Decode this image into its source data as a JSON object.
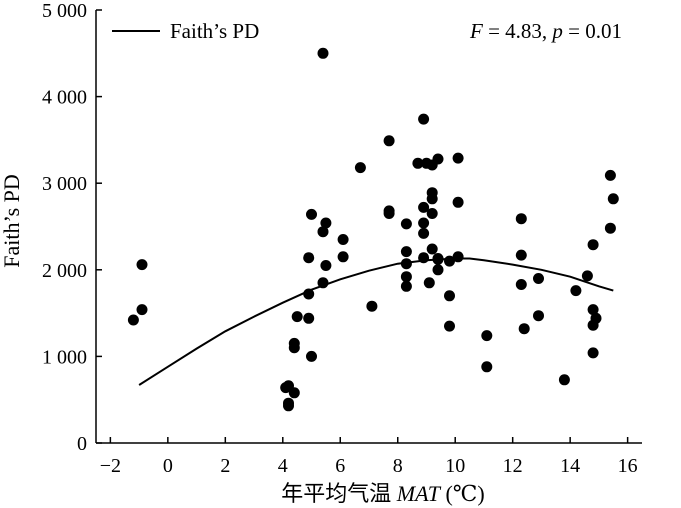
{
  "chart_data": {
    "type": "scatter",
    "xlabel": {
      "prefix": "年平均气温 ",
      "italic": "MAT",
      "suffix": " (℃)"
    },
    "ylabel": "Faith’s PD",
    "xlim": [
      -2.5,
      16.5
    ],
    "ylim": [
      0,
      5000
    ],
    "xticks": [
      -2,
      0,
      2,
      4,
      6,
      8,
      10,
      12,
      14,
      16
    ],
    "xtick_labels": [
      "−2",
      "0",
      "2",
      "4",
      "6",
      "8",
      "10",
      "12",
      "14",
      "16"
    ],
    "yticks": [
      0,
      1000,
      2000,
      3000,
      4000,
      5000
    ],
    "ytick_labels": [
      "0",
      "1 000",
      "2 000",
      "3 000",
      "4 000",
      "5 000"
    ],
    "grid": false,
    "legend": {
      "position": "top-left",
      "entries": [
        {
          "label": "Faith’s PD",
          "marker": "line"
        }
      ]
    },
    "annotation": {
      "F_label": "F",
      "F_value": " = 4.83, ",
      "p_label": "p",
      "p_value": " = 0.01"
    },
    "colors": {
      "points": "#000000",
      "fit_line": "#000000"
    },
    "fit_curve": {
      "kind": "quadratic",
      "x": [
        -1.0,
        0,
        1,
        2,
        3,
        4,
        5,
        6,
        7,
        8,
        9,
        10,
        10.5,
        11,
        12,
        13,
        14,
        15,
        15.5
      ],
      "y": [
        670,
        880,
        1090,
        1290,
        1460,
        1620,
        1770,
        1890,
        1990,
        2070,
        2110,
        2130,
        2130,
        2110,
        2060,
        2000,
        1920,
        1810,
        1760
      ]
    },
    "points": [
      {
        "x": -1.2,
        "y": 1420
      },
      {
        "x": -0.9,
        "y": 1540
      },
      {
        "x": -0.9,
        "y": 2060
      },
      {
        "x": 4.1,
        "y": 640
      },
      {
        "x": 4.2,
        "y": 660
      },
      {
        "x": 4.2,
        "y": 430
      },
      {
        "x": 4.2,
        "y": 460
      },
      {
        "x": 4.4,
        "y": 580
      },
      {
        "x": 4.4,
        "y": 1100
      },
      {
        "x": 4.4,
        "y": 1150
      },
      {
        "x": 4.5,
        "y": 1460
      },
      {
        "x": 4.9,
        "y": 1720
      },
      {
        "x": 4.9,
        "y": 1440
      },
      {
        "x": 4.9,
        "y": 2140
      },
      {
        "x": 5.0,
        "y": 1000
      },
      {
        "x": 5.0,
        "y": 2640
      },
      {
        "x": 5.4,
        "y": 2440
      },
      {
        "x": 5.4,
        "y": 1850
      },
      {
        "x": 5.5,
        "y": 2540
      },
      {
        "x": 5.5,
        "y": 2050
      },
      {
        "x": 5.4,
        "y": 4500
      },
      {
        "x": 6.1,
        "y": 2350
      },
      {
        "x": 6.1,
        "y": 2150
      },
      {
        "x": 6.7,
        "y": 3180
      },
      {
        "x": 7.1,
        "y": 1580
      },
      {
        "x": 7.7,
        "y": 3490
      },
      {
        "x": 7.7,
        "y": 2680
      },
      {
        "x": 7.7,
        "y": 2650
      },
      {
        "x": 8.3,
        "y": 2530
      },
      {
        "x": 8.3,
        "y": 2210
      },
      {
        "x": 8.3,
        "y": 2070
      },
      {
        "x": 8.3,
        "y": 1920
      },
      {
        "x": 8.3,
        "y": 1810
      },
      {
        "x": 8.7,
        "y": 3230
      },
      {
        "x": 8.9,
        "y": 3740
      },
      {
        "x": 8.9,
        "y": 2720
      },
      {
        "x": 8.9,
        "y": 2540
      },
      {
        "x": 8.9,
        "y": 2420
      },
      {
        "x": 8.9,
        "y": 2140
      },
      {
        "x": 9.0,
        "y": 3230
      },
      {
        "x": 9.1,
        "y": 1850
      },
      {
        "x": 9.2,
        "y": 3210
      },
      {
        "x": 9.2,
        "y": 2890
      },
      {
        "x": 9.2,
        "y": 2820
      },
      {
        "x": 9.2,
        "y": 2650
      },
      {
        "x": 9.2,
        "y": 2240
      },
      {
        "x": 9.4,
        "y": 3280
      },
      {
        "x": 9.4,
        "y": 2130
      },
      {
        "x": 9.4,
        "y": 2000
      },
      {
        "x": 9.4,
        "y": 2120
      },
      {
        "x": 9.8,
        "y": 2100
      },
      {
        "x": 9.8,
        "y": 1700
      },
      {
        "x": 9.8,
        "y": 1350
      },
      {
        "x": 10.1,
        "y": 3290
      },
      {
        "x": 10.1,
        "y": 2780
      },
      {
        "x": 10.1,
        "y": 2150
      },
      {
        "x": 11.1,
        "y": 1240
      },
      {
        "x": 11.1,
        "y": 880
      },
      {
        "x": 12.3,
        "y": 2590
      },
      {
        "x": 12.3,
        "y": 2170
      },
      {
        "x": 12.3,
        "y": 1830
      },
      {
        "x": 12.4,
        "y": 1320
      },
      {
        "x": 12.9,
        "y": 1900
      },
      {
        "x": 12.9,
        "y": 1470
      },
      {
        "x": 13.8,
        "y": 730
      },
      {
        "x": 14.2,
        "y": 1760
      },
      {
        "x": 14.6,
        "y": 1930
      },
      {
        "x": 14.8,
        "y": 2290
      },
      {
        "x": 14.8,
        "y": 1540
      },
      {
        "x": 14.8,
        "y": 1360
      },
      {
        "x": 14.9,
        "y": 1440
      },
      {
        "x": 14.8,
        "y": 1040
      },
      {
        "x": 15.4,
        "y": 3090
      },
      {
        "x": 15.5,
        "y": 2820
      },
      {
        "x": 15.4,
        "y": 2480
      }
    ]
  }
}
